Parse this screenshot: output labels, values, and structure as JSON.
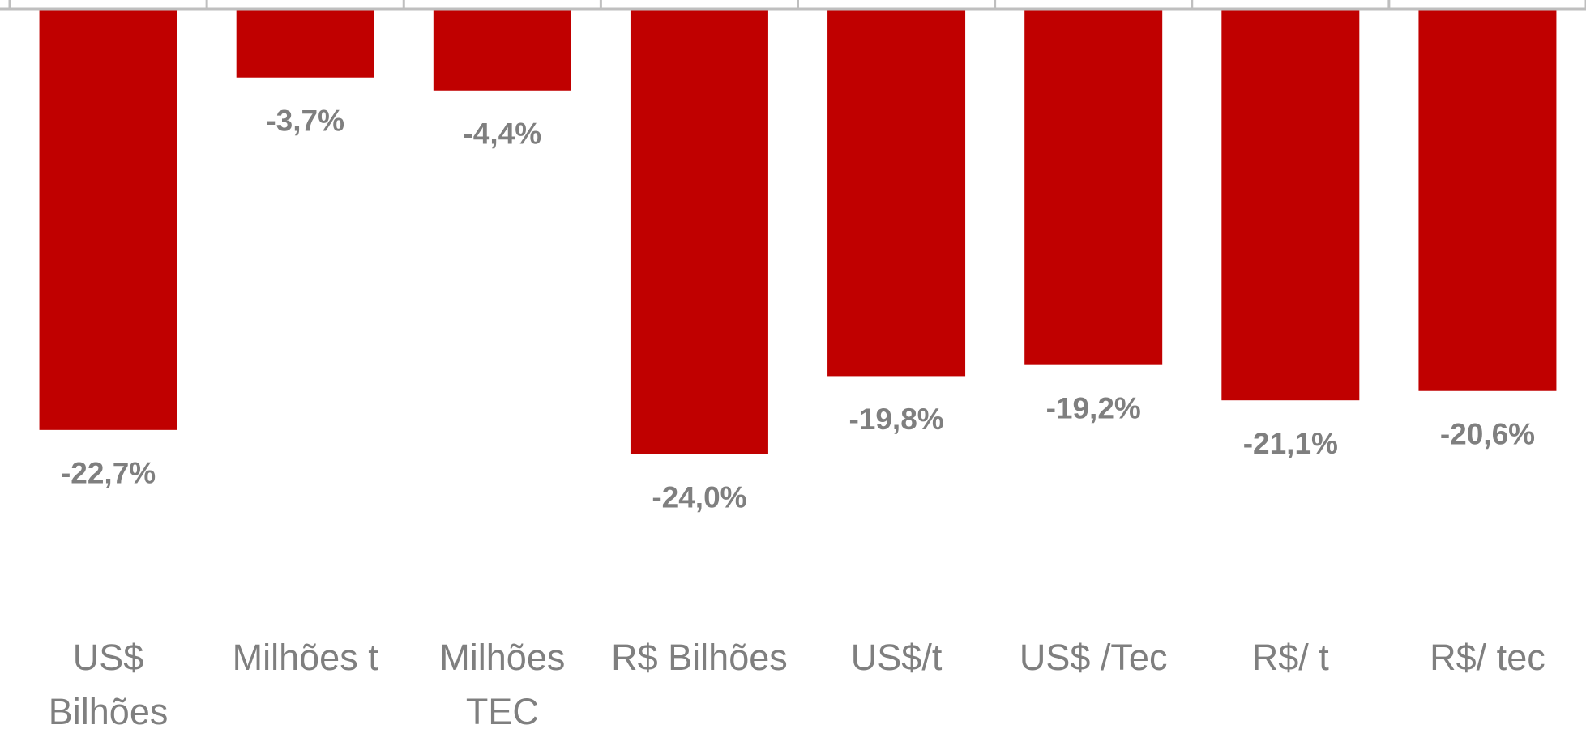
{
  "chart_data": {
    "type": "bar",
    "categories": [
      "US$ Bilhões",
      "Milhões t",
      "Milhões TEC",
      "R$ Bilhões",
      "US$/t",
      "US$ /Tec",
      "R$/ t",
      "R$/ tec"
    ],
    "values": [
      -22.7,
      -3.7,
      -4.4,
      -24.0,
      -19.8,
      -19.2,
      -21.1,
      -20.6
    ],
    "value_labels": [
      "-22,7%",
      "-3,7%",
      "-4,4%",
      "-24,0%",
      "-19,8%",
      "-19,2%",
      "-21,1%",
      "-20,6%"
    ],
    "color": "#c00000",
    "ylim": [
      -30,
      0
    ]
  }
}
